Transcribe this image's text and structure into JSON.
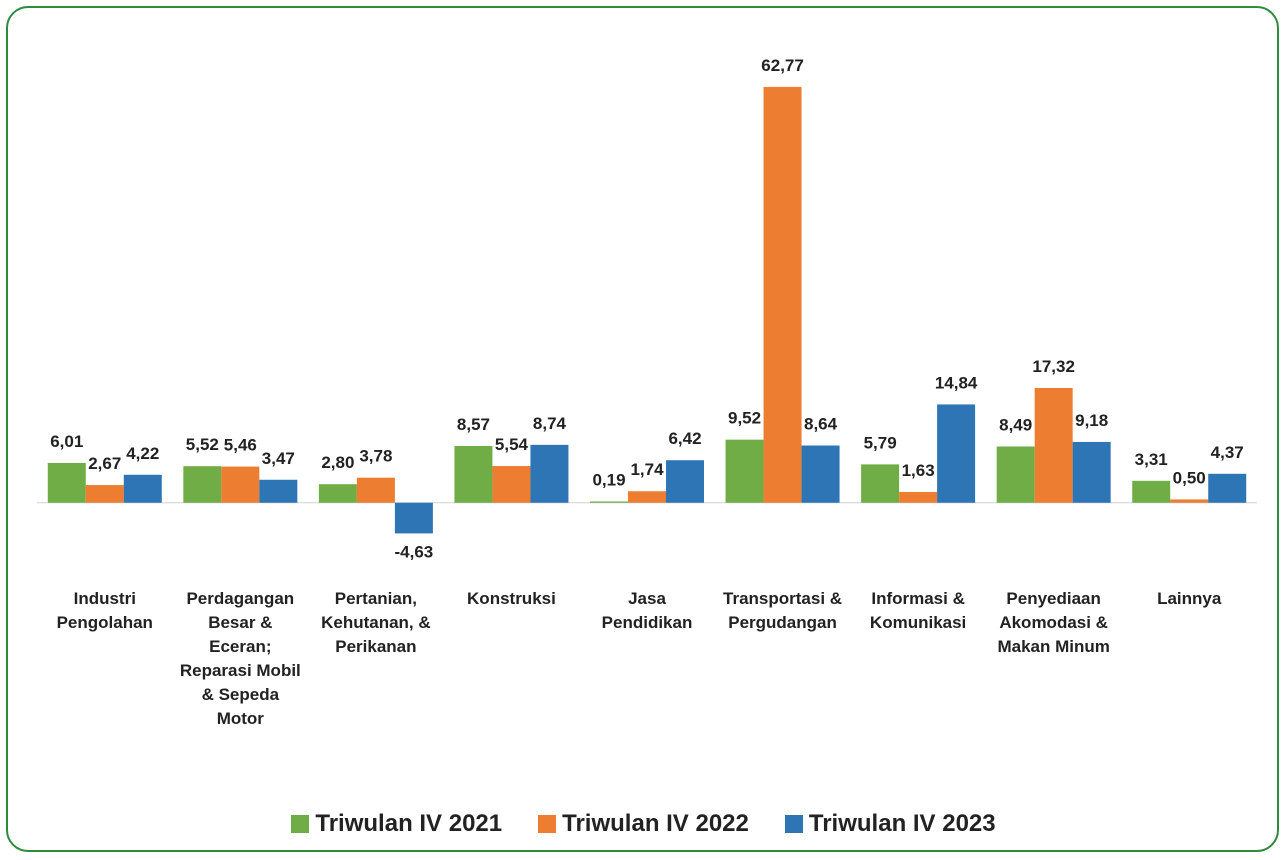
{
  "chart_data": {
    "type": "bar",
    "categories": [
      "Industri Pengolahan",
      "Perdagangan Besar & Eceran; Reparasi Mobil & Sepeda Motor",
      "Pertanian, Kehutanan, & Perikanan",
      "Konstruksi",
      "Jasa Pendidikan",
      "Transportasi & Pergudangan",
      "Informasi & Komunikasi",
      "Penyediaan Akomodasi & Makan Minum",
      "Lainnya"
    ],
    "series": [
      {
        "name": "Triwulan IV 2021",
        "color": "#70ad47",
        "values": [
          6.01,
          5.52,
          2.8,
          8.57,
          0.19,
          9.52,
          5.79,
          8.49,
          3.31
        ],
        "value_labels": [
          "6,01",
          "5,52",
          "2,80",
          "8,57",
          "0,19",
          "9,52",
          "5,79",
          "8,49",
          "3,31"
        ]
      },
      {
        "name": "Triwulan IV 2022",
        "color": "#ed7d31",
        "values": [
          2.67,
          5.46,
          3.78,
          5.54,
          1.74,
          62.77,
          1.63,
          17.32,
          0.5
        ],
        "value_labels": [
          "2,67",
          "5,46",
          "3,78",
          "5,54",
          "1,74",
          "62,77",
          "1,63",
          "17,32",
          "0,50"
        ]
      },
      {
        "name": "Triwulan IV 2023",
        "color": "#2e75b6",
        "values": [
          4.22,
          3.47,
          -4.63,
          8.74,
          6.42,
          8.64,
          14.84,
          9.18,
          4.37
        ],
        "value_labels": [
          "4,22",
          "3,47",
          "-4,63",
          "8,74",
          "6,42",
          "8,64",
          "14,84",
          "9,18",
          "4,37"
        ]
      }
    ],
    "ylim": [
      -10,
      70
    ],
    "legend": "bottom"
  }
}
